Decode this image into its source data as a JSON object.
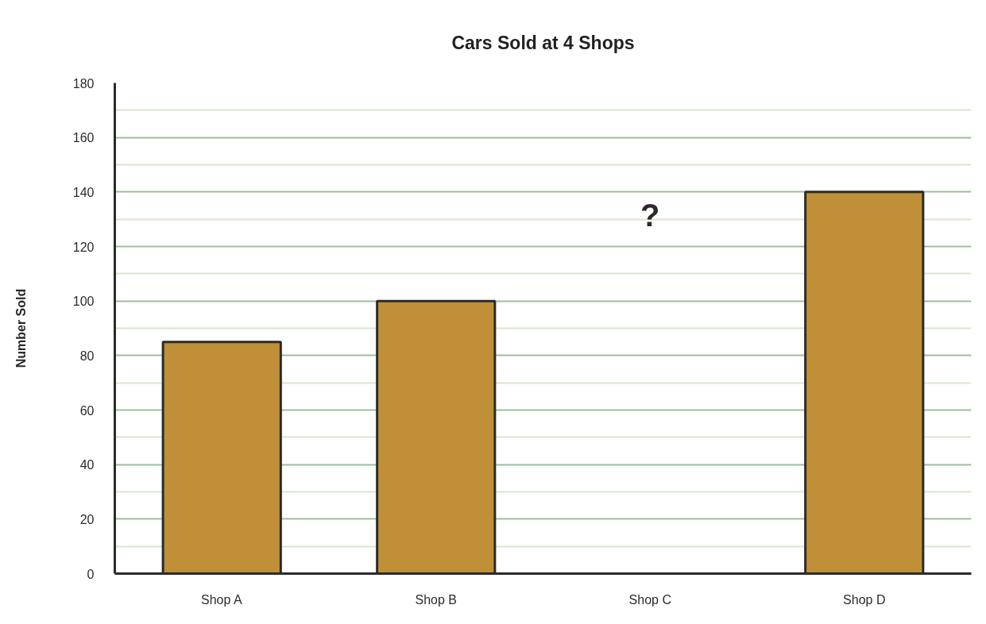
{
  "chart_data": {
    "type": "bar",
    "title": "Cars Sold at 4 Shops",
    "ylabel": "Number Sold",
    "categories": [
      "Shop A",
      "Shop B",
      "Shop C",
      "Shop D"
    ],
    "values": [
      85,
      100,
      null,
      140
    ],
    "color": "#bf9038",
    "ylim": [
      0,
      180
    ],
    "yticks": [
      0,
      {
        "value": 10,
        "label": null
      },
      20,
      {
        "value": 30,
        "label": null
      },
      40,
      {
        "value": 50,
        "label": null
      },
      60,
      {
        "value": 70,
        "label": null
      },
      80,
      {
        "value": 90,
        "label": null
      },
      100,
      {
        "value": 110,
        "label": null
      },
      120,
      {
        "value": 130,
        "label": null
      },
      140,
      {
        "value": 150,
        "label": null
      },
      160,
      {
        "value": 170,
        "label": null
      },
      180
    ],
    "grid": "y",
    "annotations": [
      "?"
    ]
  }
}
